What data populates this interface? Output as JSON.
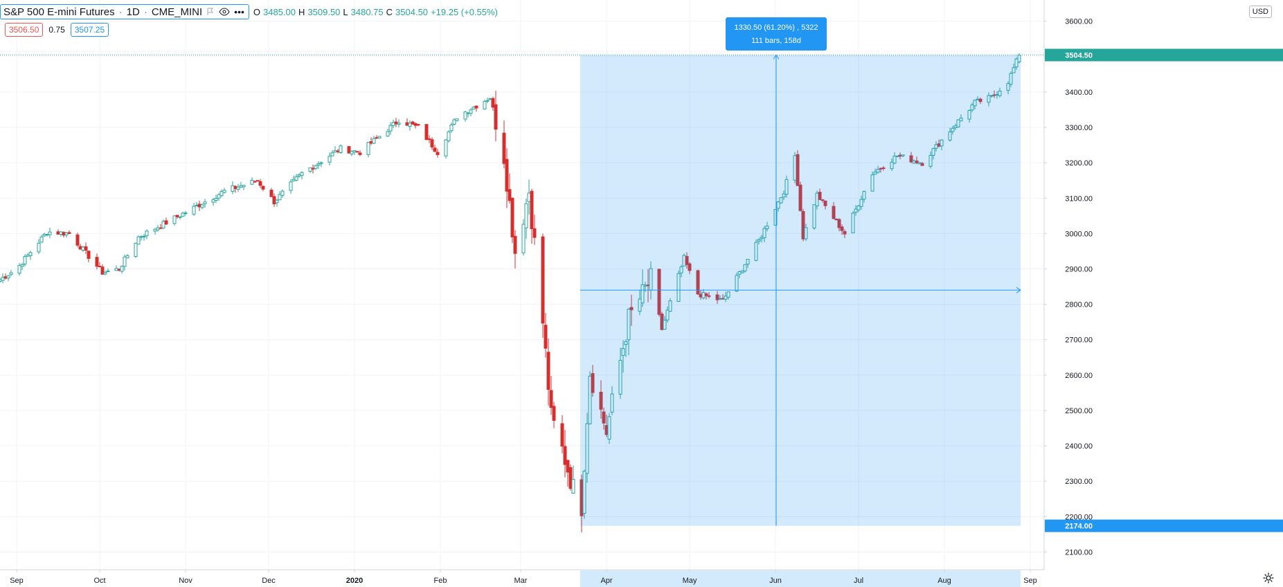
{
  "legend": {
    "symbol": "S&P 500 E-mini Futures",
    "interval": "1D",
    "exchange": "CME_MINI",
    "ohlc": [
      {
        "label": "O",
        "value": "3485.00"
      },
      {
        "label": "H",
        "value": "3509.50"
      },
      {
        "label": "L",
        "value": "3480.75"
      },
      {
        "label": "C",
        "value": "3504.50"
      }
    ],
    "change": "+19.25 (+0.55%)",
    "bid": "3506.50",
    "spread": "0.75",
    "ask": "3507.25",
    "currency": "USD"
  },
  "colors": {
    "up": "#26a69a",
    "down": "#d32f2f",
    "range_fill": "#2196f3",
    "accent": "#2196f3",
    "grid": "#f0f3fa",
    "axis_text": "#131722"
  },
  "icons": [
    "flag-icon",
    "eye-icon",
    "more-icon",
    "gear-icon"
  ],
  "measure": {
    "label_line1": "1330.50 (61.20%) , 5322",
    "label_line2": "111 bars, 158d",
    "start_date": "2020-03-23",
    "end_date": "2020-08-28",
    "low": 2174.0,
    "high": 3504.5,
    "low_label": "2174.00",
    "high_label": "3504.50"
  },
  "chart_data": {
    "type": "candlestick",
    "x_axis_labels": [
      {
        "date": "2019-09-01",
        "label": "Sep"
      },
      {
        "date": "2019-10-01",
        "label": "Oct"
      },
      {
        "date": "2019-11-01",
        "label": "Nov"
      },
      {
        "date": "2019-12-01",
        "label": "Dec"
      },
      {
        "date": "2020-01-01",
        "label": "2020"
      },
      {
        "date": "2020-02-01",
        "label": "Feb"
      },
      {
        "date": "2020-03-01",
        "label": "Mar"
      },
      {
        "date": "2020-04-01",
        "label": "Apr"
      },
      {
        "date": "2020-05-01",
        "label": "May"
      },
      {
        "date": "2020-06-01",
        "label": "Jun"
      },
      {
        "date": "2020-07-01",
        "label": "Jul"
      },
      {
        "date": "2020-08-01",
        "label": "Aug"
      },
      {
        "date": "2020-09-01",
        "label": "Sep"
      }
    ],
    "y_ticks": [
      2100,
      2200,
      2300,
      2400,
      2500,
      2600,
      2700,
      2800,
      2900,
      3000,
      3100,
      3200,
      3300,
      3400,
      3500,
      3600
    ],
    "y_tick_labels": [
      "2100.00",
      "2200.00",
      "2300.00",
      "2400.00",
      "2500.00",
      "2600.00",
      "2700.00",
      "2800.00",
      "2900.00",
      "3000.00",
      "3100.00",
      "3200.00",
      "3300.00",
      "3400.00",
      "3500.00",
      "3600.00"
    ],
    "ylim": [
      2050,
      3660
    ],
    "xlim": [
      "2019-08-26",
      "2020-09-06"
    ],
    "last_price": 3504.5,
    "last_price_label": "3504.50",
    "grid": true,
    "closes": [
      {
        "date": "2019-08-26",
        "close": 2870
      },
      {
        "date": "2019-09-01",
        "close": 2900
      },
      {
        "date": "2019-09-12",
        "close": 3005
      },
      {
        "date": "2019-09-20",
        "close": 3000
      },
      {
        "date": "2019-10-02",
        "close": 2890
      },
      {
        "date": "2019-10-08",
        "close": 2900
      },
      {
        "date": "2019-10-15",
        "close": 2990
      },
      {
        "date": "2019-11-01",
        "close": 3060
      },
      {
        "date": "2019-11-15",
        "close": 3120
      },
      {
        "date": "2019-11-27",
        "close": 3150
      },
      {
        "date": "2019-12-03",
        "close": 3090
      },
      {
        "date": "2019-12-13",
        "close": 3170
      },
      {
        "date": "2019-12-27",
        "close": 3240
      },
      {
        "date": "2020-01-03",
        "close": 3230
      },
      {
        "date": "2020-01-17",
        "close": 3320
      },
      {
        "date": "2020-01-24",
        "close": 3300
      },
      {
        "date": "2020-01-31",
        "close": 3230
      },
      {
        "date": "2020-02-07",
        "close": 3330
      },
      {
        "date": "2020-02-19",
        "close": 3385
      },
      {
        "date": "2020-02-24",
        "close": 3220
      },
      {
        "date": "2020-02-28",
        "close": 2950
      },
      {
        "date": "2020-03-04",
        "close": 3120
      },
      {
        "date": "2020-03-09",
        "close": 2750
      },
      {
        "date": "2020-03-12",
        "close": 2480
      },
      {
        "date": "2020-03-16",
        "close": 2390
      },
      {
        "date": "2020-03-20",
        "close": 2280
      },
      {
        "date": "2020-03-23",
        "close": 2230
      },
      {
        "date": "2020-03-26",
        "close": 2610
      },
      {
        "date": "2020-04-01",
        "close": 2440
      },
      {
        "date": "2020-04-09",
        "close": 2760
      },
      {
        "date": "2020-04-17",
        "close": 2870
      },
      {
        "date": "2020-04-21",
        "close": 2730
      },
      {
        "date": "2020-04-29",
        "close": 2930
      },
      {
        "date": "2020-05-04",
        "close": 2830
      },
      {
        "date": "2020-05-13",
        "close": 2810
      },
      {
        "date": "2020-05-26",
        "close": 2980
      },
      {
        "date": "2020-06-04",
        "close": 3120
      },
      {
        "date": "2020-06-08",
        "close": 3220
      },
      {
        "date": "2020-06-11",
        "close": 2990
      },
      {
        "date": "2020-06-16",
        "close": 3110
      },
      {
        "date": "2020-06-26",
        "close": 3000
      },
      {
        "date": "2020-07-06",
        "close": 3170
      },
      {
        "date": "2020-07-15",
        "close": 3220
      },
      {
        "date": "2020-07-24",
        "close": 3200
      },
      {
        "date": "2020-08-04",
        "close": 3300
      },
      {
        "date": "2020-08-12",
        "close": 3370
      },
      {
        "date": "2020-08-18",
        "close": 3385
      },
      {
        "date": "2020-08-24",
        "close": 3430
      },
      {
        "date": "2020-08-28",
        "close": 3504.5
      }
    ]
  }
}
